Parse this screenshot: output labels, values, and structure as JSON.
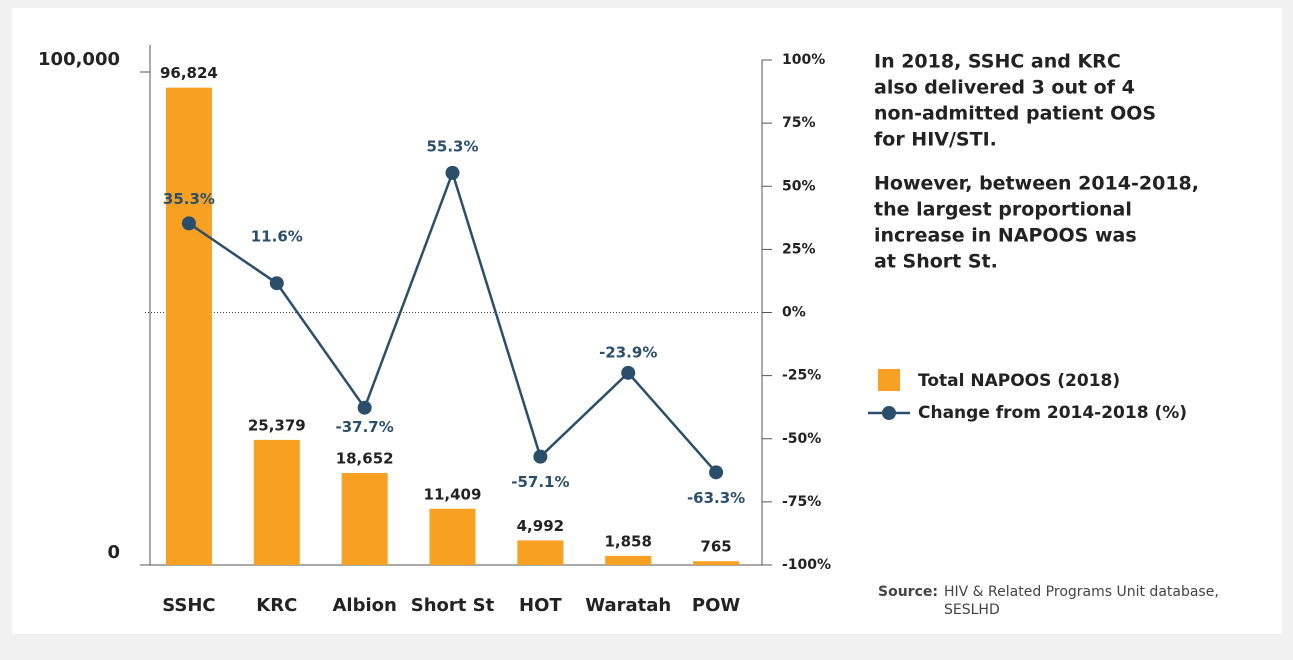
{
  "chart_data": {
    "type": "bar_line",
    "categories": [
      "SSHC",
      "KRC",
      "Albion",
      "Short St",
      "HOT",
      "Waratah",
      "POW"
    ],
    "series": [
      {
        "name": "Total NAPOOS (2018)",
        "type": "bar",
        "color": "#f7a021",
        "values": [
          96824,
          25379,
          18652,
          11409,
          4992,
          1858,
          765
        ],
        "value_labels": [
          "96,824",
          "25,379",
          "18,652",
          "11,409",
          "4,992",
          "1,858",
          "765"
        ]
      },
      {
        "name": "Change from 2014-2018 (%)",
        "type": "line",
        "axis": "y2",
        "color": "#2b4f6b",
        "values": [
          35.3,
          11.6,
          -37.7,
          55.3,
          -57.1,
          -23.9,
          -63.3
        ],
        "value_labels": [
          "35.3%",
          "11.6%",
          "-37.7%",
          "55.3%",
          "-57.1%",
          "-23.9%",
          "-63.3%"
        ]
      }
    ],
    "ylim": [
      0,
      100000
    ],
    "yticks": [
      {
        "value": 0,
        "label": "0"
      },
      {
        "value": 100000,
        "label": "100,000"
      }
    ],
    "y2lim": [
      -100,
      100
    ],
    "y2ticks": [
      {
        "value": -100,
        "label": "-100%"
      },
      {
        "value": -75,
        "label": "-75%"
      },
      {
        "value": -50,
        "label": "-50%"
      },
      {
        "value": -25,
        "label": "-25%"
      },
      {
        "value": 0,
        "label": "0%"
      },
      {
        "value": 25,
        "label": "25%"
      },
      {
        "value": 50,
        "label": "50%"
      },
      {
        "value": 75,
        "label": "75%"
      },
      {
        "value": 100,
        "label": "100%"
      }
    ],
    "annotations": [
      [
        "In 2018, SSHC and KRC",
        "also delivered 3 out of 4",
        "non-admitted patient OOS",
        "for HIV/STI."
      ],
      [
        "However, between 2014-2018,",
        "the largest proportional",
        "increase in NAPOOS was",
        "at Short St."
      ]
    ],
    "source_label": "Source:",
    "source": [
      "HIV & Related Programs Unit database,",
      "SESLHD"
    ]
  }
}
